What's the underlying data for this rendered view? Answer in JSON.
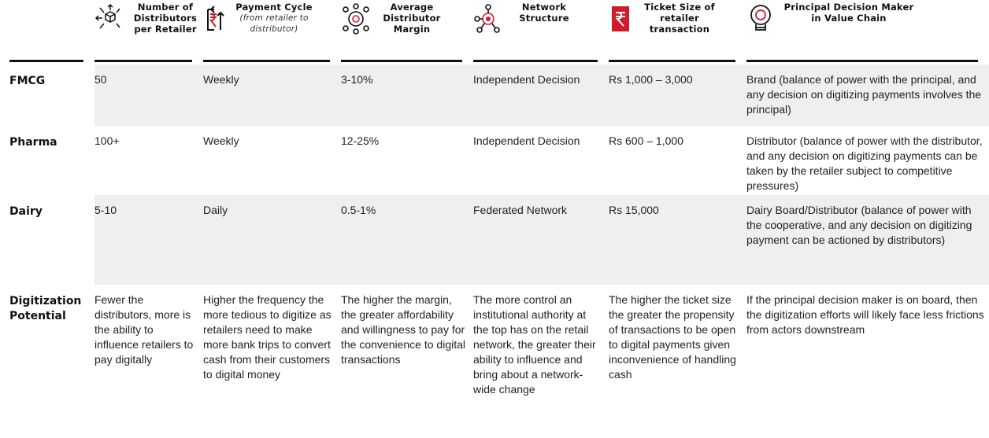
{
  "table": {
    "headers": [
      {
        "title": "Number of Distributors per Retailer"
      },
      {
        "title": "Payment Cycle",
        "note": "(from retailer to distributor)"
      },
      {
        "title": "Average Distributor Margin"
      },
      {
        "title": "Network Structure"
      },
      {
        "title": "Ticket Size of retailer transaction"
      },
      {
        "title": "Principal Decision Maker in Value Chain"
      }
    ],
    "rows": [
      {
        "label": "FMCG",
        "cells": [
          "50",
          "Weekly",
          "3-10%",
          "Independent Decision",
          "Rs 1,000 – 3,000",
          "Brand (balance of power with the principal, and any decision on digitizing payments involves the principal)"
        ]
      },
      {
        "label": "Pharma",
        "cells": [
          "100+",
          "Weekly",
          "12-25%",
          "Independent Decision",
          "Rs 600 – 1,000",
          "Distributor (balance of power with the distributor, and any decision on digitizing payments can be taken by the retailer subject to competitive pressures)"
        ]
      },
      {
        "label": "Dairy",
        "cells": [
          "5-10",
          "Daily",
          "0.5-1%",
          "Federated Network",
          "Rs 15,000",
          "Dairy Board/Distributor (balance of power with the cooperative, and any decision on digitizing payment can be actioned by distributors)"
        ]
      },
      {
        "label": "Digitization Potential",
        "cells": [
          "Fewer the distributors, more is the ability to influence retailers to pay digitally",
          "Higher the frequency the more tedious to digitize as retailers need to make more bank trips to convert cash from their customers to digital money",
          "The higher the margin, the greater affordability and willingness to pay for the convenience to digital transactions",
          "The more control an institutional authority at the top has on the retail network, the greater their ability to influence and bring about a network-wide change",
          "The higher the ticket size the greater the propensity of transactions to be open to digital payments given inconvenience of handling cash",
          "If the principal decision maker is on board, then the digitization efforts will likely face less frictions from actors downstream"
        ]
      }
    ]
  }
}
